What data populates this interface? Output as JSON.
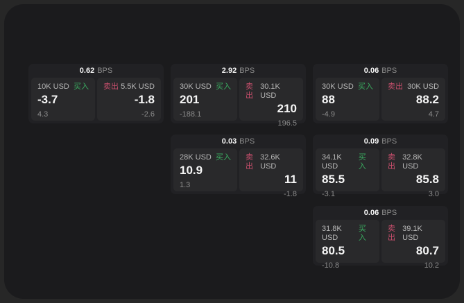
{
  "page": {
    "bps_suffix": "BPS",
    "buy_label": "买入",
    "sell_label": "卖出",
    "colors": {
      "background_outer": "#272727",
      "background_page": "#1b1b1d",
      "card": "#212124",
      "panel": "#29292b",
      "buy_green": "#3aac60",
      "sell_red": "#c94f6d",
      "text_primary": "#f5f5f5",
      "text_secondary": "#b8b8b8",
      "text_muted": "#8c8c8c"
    }
  },
  "cards": [
    {
      "bps": "0.62",
      "buy": {
        "amount": "10K USD",
        "value": "-3.7",
        "sub": "4.3"
      },
      "sell": {
        "amount": "5.5K USD",
        "value": "-1.8",
        "sub": "-2.6"
      }
    },
    {
      "bps": "2.92",
      "buy": {
        "amount": "30K USD",
        "value": "201",
        "sub": "-188.1"
      },
      "sell": {
        "amount": "30.1K USD",
        "value": "210",
        "sub": "196.5"
      }
    },
    {
      "bps": "0.06",
      "buy": {
        "amount": "30K USD",
        "value": "88",
        "sub": "-4.9"
      },
      "sell": {
        "amount": "30K USD",
        "value": "88.2",
        "sub": "4.7"
      }
    },
    {
      "bps": "0.03",
      "buy": {
        "amount": "28K USD",
        "value": "10.9",
        "sub": "1.3"
      },
      "sell": {
        "amount": "32.6K USD",
        "value": "11",
        "sub": "-1.8"
      }
    },
    {
      "bps": "0.09",
      "buy": {
        "amount": "34.1K USD",
        "value": "85.5",
        "sub": "-3.1"
      },
      "sell": {
        "amount": "32.8K USD",
        "value": "85.8",
        "sub": "3.0"
      }
    },
    {
      "bps": "0.06",
      "buy": {
        "amount": "31.8K USD",
        "value": "80.5",
        "sub": "-10.8"
      },
      "sell": {
        "amount": "39.1K USD",
        "value": "80.7",
        "sub": "10.2"
      }
    }
  ]
}
